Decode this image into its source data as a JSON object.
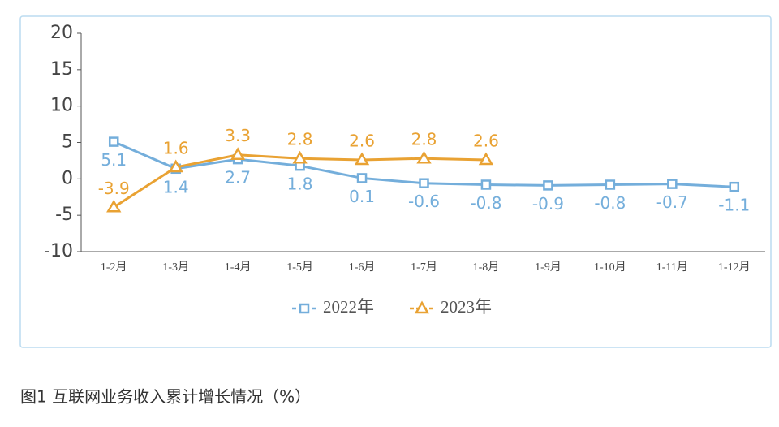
{
  "chart_data": {
    "type": "line",
    "caption": "图1  互联网业务收入累计增长情况（%）",
    "categories": [
      "1-2月",
      "1-3月",
      "1-4月",
      "1-5月",
      "1-6月",
      "1-7月",
      "1-8月",
      "1-9月",
      "1-10月",
      "1-11月",
      "1-12月"
    ],
    "series": [
      {
        "name": "2022年",
        "color": "#74aedb",
        "marker": "square",
        "values": [
          5.1,
          1.4,
          2.7,
          1.8,
          0.1,
          -0.6,
          -0.8,
          -0.9,
          -0.8,
          -0.7,
          -1.1
        ]
      },
      {
        "name": "2023年",
        "color": "#e9a233",
        "marker": "triangle",
        "values": [
          -3.9,
          1.6,
          3.3,
          2.8,
          2.6,
          2.8,
          2.6,
          null,
          null,
          null,
          null
        ]
      }
    ],
    "ylim": [
      -10,
      20
    ],
    "yticks": [
      -10,
      -5,
      0,
      5,
      10,
      15,
      20
    ],
    "grid": false,
    "legend": "bottom"
  }
}
